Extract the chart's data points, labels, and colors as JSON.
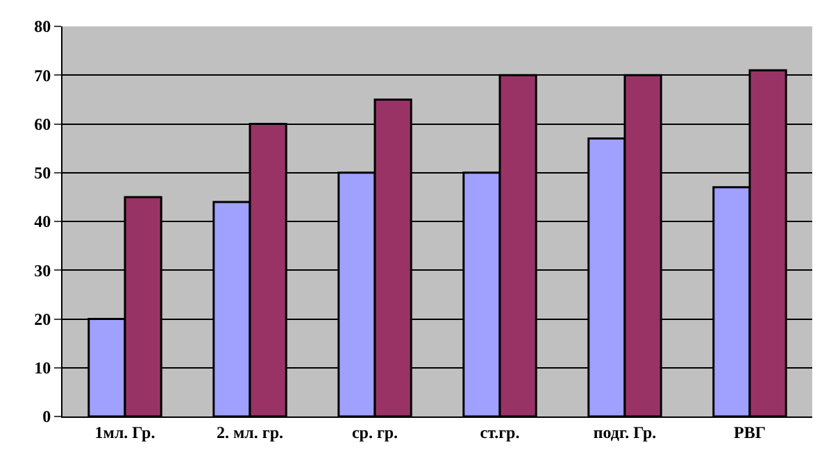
{
  "chart_data": {
    "type": "bar",
    "categories": [
      "1мл. Гр.",
      "2. мл. гр.",
      "ср. гр.",
      "ст.гр.",
      "подг. Гр.",
      "РВГ"
    ],
    "series": [
      {
        "color": "#a0a0ff",
        "values": [
          20,
          44,
          50,
          50,
          57,
          47
        ]
      },
      {
        "color": "#993366",
        "values": [
          45,
          60,
          65,
          70,
          70,
          71
        ]
      }
    ],
    "ylim": [
      0,
      80
    ],
    "yticks": [
      0,
      10,
      20,
      30,
      40,
      50,
      60,
      70,
      80
    ],
    "grid": "y"
  }
}
